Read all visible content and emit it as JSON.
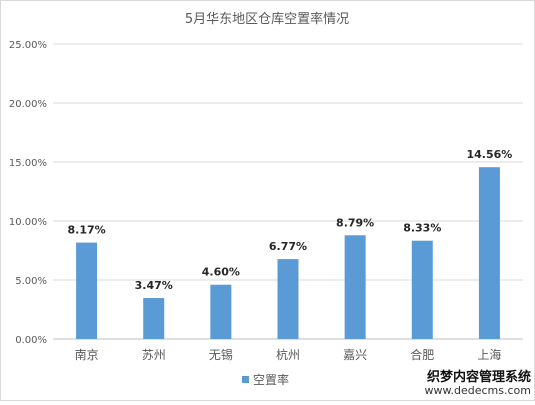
{
  "chart_data": {
    "type": "bar",
    "title": "5月华东地区仓库空置率情况",
    "categories": [
      "南京",
      "苏州",
      "无锡",
      "杭州",
      "嘉兴",
      "合肥",
      "上海"
    ],
    "series": [
      {
        "name": "空置率",
        "values": [
          8.17,
          3.47,
          4.6,
          6.77,
          8.79,
          8.33,
          14.56
        ],
        "labels": [
          "8.17%",
          "3.47%",
          "4.60%",
          "6.77%",
          "8.79%",
          "8.33%",
          "14.56%"
        ]
      }
    ],
    "ylim": [
      0,
      25
    ],
    "yticks": [
      0,
      5,
      10,
      15,
      20,
      25
    ],
    "ytick_labels": [
      "0.00%",
      "5.00%",
      "10.00%",
      "15.00%",
      "20.00%",
      "25.00%"
    ],
    "grid": true,
    "legend": "bottom",
    "bar_color": "#5b9bd5"
  },
  "watermark": {
    "main": "织梦内容管理系统",
    "sub": "www.dedecms.com"
  }
}
